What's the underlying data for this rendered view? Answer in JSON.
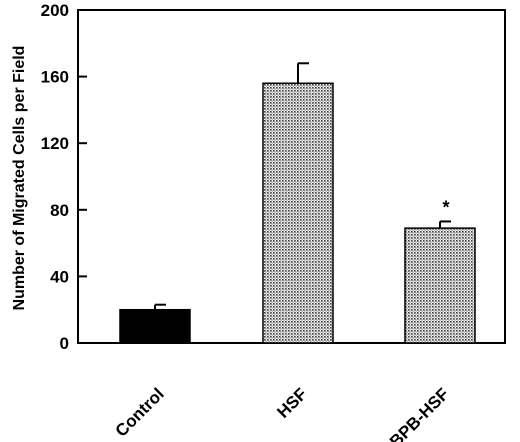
{
  "chart_data": {
    "type": "bar",
    "title": "",
    "xlabel": "",
    "ylabel": "Number of Migrated Cells per Field",
    "ylim": [
      0,
      200
    ],
    "yticks": [
      0,
      40,
      80,
      120,
      160,
      200
    ],
    "categories": [
      "Control",
      "HSF",
      "p-BPB-HSF"
    ],
    "values": [
      20,
      156,
      69
    ],
    "errors": [
      3,
      12,
      4
    ],
    "fills": [
      "solid-black",
      "stipple",
      "stipple"
    ],
    "annotations": [
      "",
      "",
      "*"
    ],
    "grid": false,
    "legend": "none"
  }
}
